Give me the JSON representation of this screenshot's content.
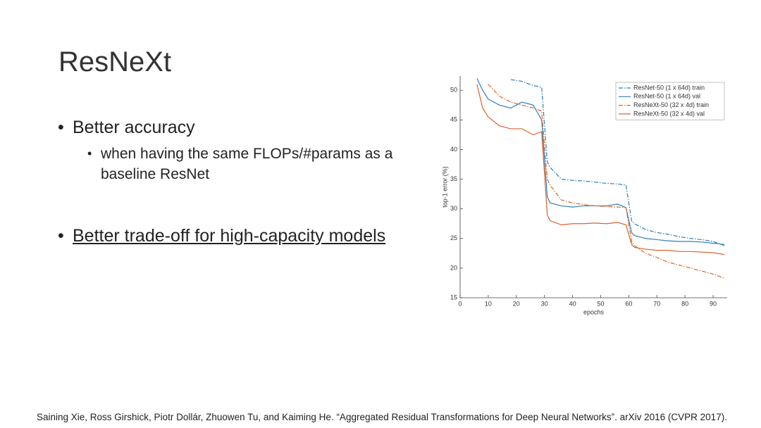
{
  "slide": {
    "title": "ResNeXt",
    "bullets": [
      {
        "text": "Better accuracy",
        "sub": [
          "when having the same FLOPs/#params as a baseline ResNet"
        ]
      },
      {
        "text": "Better trade-off for high-capacity models"
      }
    ],
    "footnote": "Saining Xie, Ross Girshick, Piotr Dollár, Zhuowen Tu, and Kaiming He. “Aggregated Residual Transformations for Deep Neural Networks”. arXiv 2016 (CVPR 2017)."
  },
  "chart_data": {
    "type": "line",
    "xlabel": "epochs",
    "ylabel": "top-1 error (%)",
    "xlim": [
      0,
      95
    ],
    "ylim": [
      15,
      52.4
    ],
    "xticks": [
      0,
      10,
      20,
      30,
      40,
      50,
      60,
      70,
      80,
      90
    ],
    "yticks": [
      15,
      20,
      25,
      30,
      35,
      40,
      45,
      50
    ],
    "legend": "upper right",
    "x": [
      6,
      8,
      10,
      14,
      18,
      22,
      26,
      29,
      31,
      32,
      36,
      40,
      44,
      48,
      52,
      56,
      59,
      61,
      62,
      66,
      70,
      74,
      78,
      82,
      86,
      90,
      94
    ],
    "series": [
      {
        "name": "ResNet-50 (1 x 64d) train",
        "color": "#2f7ebd",
        "dash": true,
        "values": [
          null,
          null,
          null,
          null,
          51.8,
          51.5,
          50.8,
          50.5,
          38,
          37,
          35,
          34.8,
          34.7,
          34.5,
          34.3,
          34.2,
          34,
          28,
          27.5,
          26.5,
          26,
          25.7,
          25.3,
          25,
          24.8,
          24.5,
          23.8
        ]
      },
      {
        "name": "ResNet-50 (1 x 64d) val",
        "color": "#2f7ebd",
        "dash": false,
        "values": [
          52,
          50,
          48.5,
          47.5,
          47,
          48,
          47.5,
          45,
          32,
          31,
          30.5,
          30.3,
          30.5,
          30.5,
          30.5,
          30.8,
          30.2,
          26,
          25.5,
          25,
          24.8,
          24.6,
          24.5,
          24.5,
          24.4,
          24.2,
          24
        ]
      },
      {
        "name": "ResNeXt-50 (32 x 4d) train",
        "color": "#d9652b",
        "dash": true,
        "values": [
          null,
          null,
          51,
          49,
          48,
          47.5,
          47,
          46.5,
          35,
          34,
          31.5,
          31,
          30.7,
          30.5,
          30.4,
          30.3,
          30.2,
          24.5,
          23.8,
          22.5,
          21.8,
          21,
          20.5,
          20,
          19.5,
          19,
          18.3
        ]
      },
      {
        "name": "ResNeXt-50 (32 x 4d) val",
        "color": "#d9652b",
        "dash": false,
        "values": [
          51,
          47,
          45.5,
          44,
          43.5,
          43.5,
          42.5,
          43,
          29,
          28,
          27.3,
          27.5,
          27.5,
          27.6,
          27.5,
          27.7,
          27.3,
          24,
          23.5,
          23.2,
          23,
          23,
          22.8,
          22.8,
          22.7,
          22.6,
          22.3
        ]
      }
    ]
  }
}
